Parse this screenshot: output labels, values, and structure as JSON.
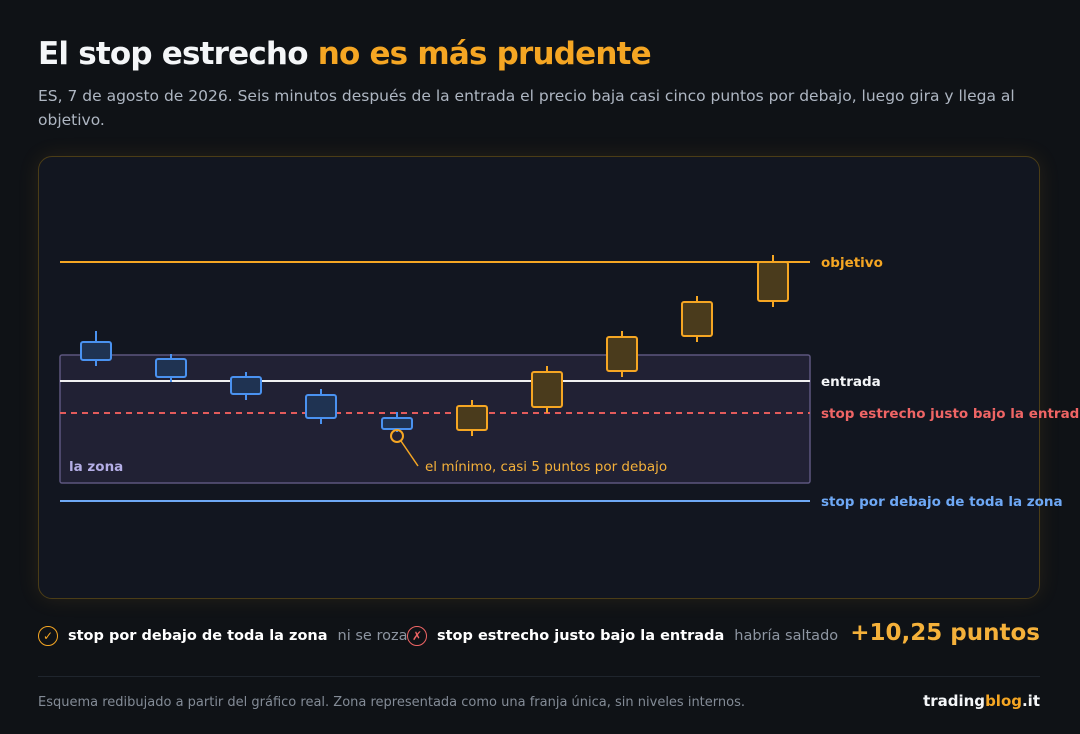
{
  "header": {
    "title_part1": "El stop estrecho",
    "title_part2": "no es más prudente",
    "subtitle": "ES, 7 de agosto de 2026. Seis minutos después de la entrada el precio baja casi cinco puntos por debajo, luego gira y llega al objetivo."
  },
  "chart_data": {
    "type": "candlestick",
    "grid": false,
    "levels": {
      "target": {
        "label": "objetivo",
        "color": "#f5a623"
      },
      "entry": {
        "label": "entrada",
        "color": "#ffffff"
      },
      "tight_stop": {
        "label": "stop estrecho justo bajo la entrada",
        "color": "#ef6565"
      },
      "wide_stop": {
        "label": "stop por debajo de toda la zona",
        "color": "#6ea8f5"
      }
    },
    "zone": {
      "label": "la zona"
    },
    "annotation": "el mínimo, casi 5 puntos por debajo",
    "colors": {
      "down": "#4a92f0",
      "up": "#f5a623",
      "zone": "#8a82c8"
    }
  },
  "legend": {
    "wide": {
      "icon": "check-icon",
      "glyph": "✓",
      "label": "stop por debajo de toda la zona",
      "status": "ni se roza"
    },
    "tight": {
      "icon": "cross-icon",
      "glyph": "✗",
      "label": "stop estrecho justo bajo la entrada",
      "status": "habría saltado"
    },
    "result": "+10,25 puntos"
  },
  "footer": {
    "note": "Esquema redibujado a partir del gráfico real. Zona representada como una franja única, sin niveles internos.",
    "brand_part1": "trading",
    "brand_part2": "blog",
    "brand_part3": ".it"
  }
}
